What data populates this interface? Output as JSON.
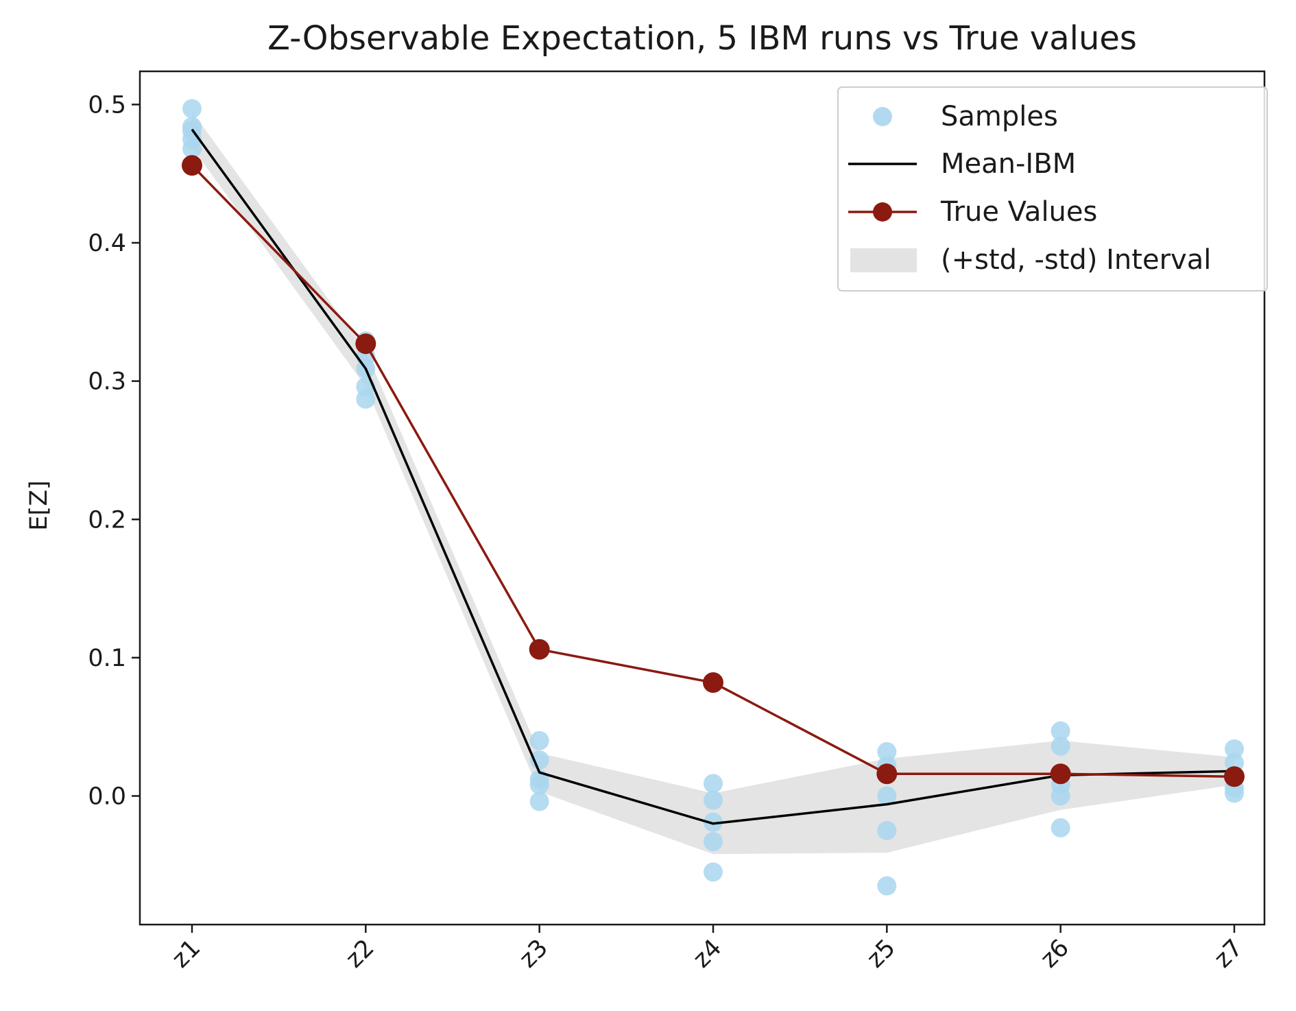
{
  "chart_data": {
    "type": "line",
    "title": "Z-Observable Expectation, 5 IBM runs vs True values",
    "xlabel": "",
    "ylabel": "E[Z]",
    "categories": [
      "z1",
      "z2",
      "z3",
      "z4",
      "z5",
      "z6",
      "z7"
    ],
    "ylim": [
      -0.093,
      0.524
    ],
    "yticks": [
      "0.0",
      "0.1",
      "0.2",
      "0.3",
      "0.4",
      "0.5"
    ],
    "ytick_values": [
      0.0,
      0.1,
      0.2,
      0.3,
      0.4,
      0.5
    ],
    "grid": false,
    "legend_position": "top-right",
    "series": [
      {
        "name": "Samples",
        "kind": "scatter",
        "color": "#a9d6ee",
        "points": [
          [
            0.497,
            0.484,
            0.481,
            0.475,
            0.468
          ],
          [
            0.329,
            0.318,
            0.309,
            0.296,
            0.287
          ],
          [
            0.04,
            0.026,
            0.012,
            0.008,
            -0.004
          ],
          [
            0.009,
            -0.003,
            -0.019,
            -0.033,
            -0.055
          ],
          [
            0.032,
            0.022,
            0.0,
            -0.025,
            -0.065
          ],
          [
            0.047,
            0.036,
            0.008,
            0.0,
            -0.023
          ],
          [
            0.034,
            0.024,
            0.014,
            0.006,
            0.002
          ]
        ]
      },
      {
        "name": "Mean-IBM",
        "kind": "line",
        "color": "#000000",
        "values": [
          0.482,
          0.309,
          0.017,
          -0.02,
          -0.006,
          0.015,
          0.018
        ]
      },
      {
        "name": "True Values",
        "kind": "line-marker",
        "color": "#8b1a10",
        "values": [
          0.456,
          0.327,
          0.106,
          0.082,
          0.016,
          0.016,
          0.014
        ]
      },
      {
        "name": "(+std, -std) Interval",
        "kind": "band",
        "color": "#e3e3e3",
        "upper": [
          0.495,
          0.322,
          0.031,
          0.002,
          0.027,
          0.04,
          0.028
        ],
        "lower": [
          0.469,
          0.296,
          0.003,
          -0.042,
          -0.041,
          -0.01,
          0.008
        ]
      }
    ]
  }
}
